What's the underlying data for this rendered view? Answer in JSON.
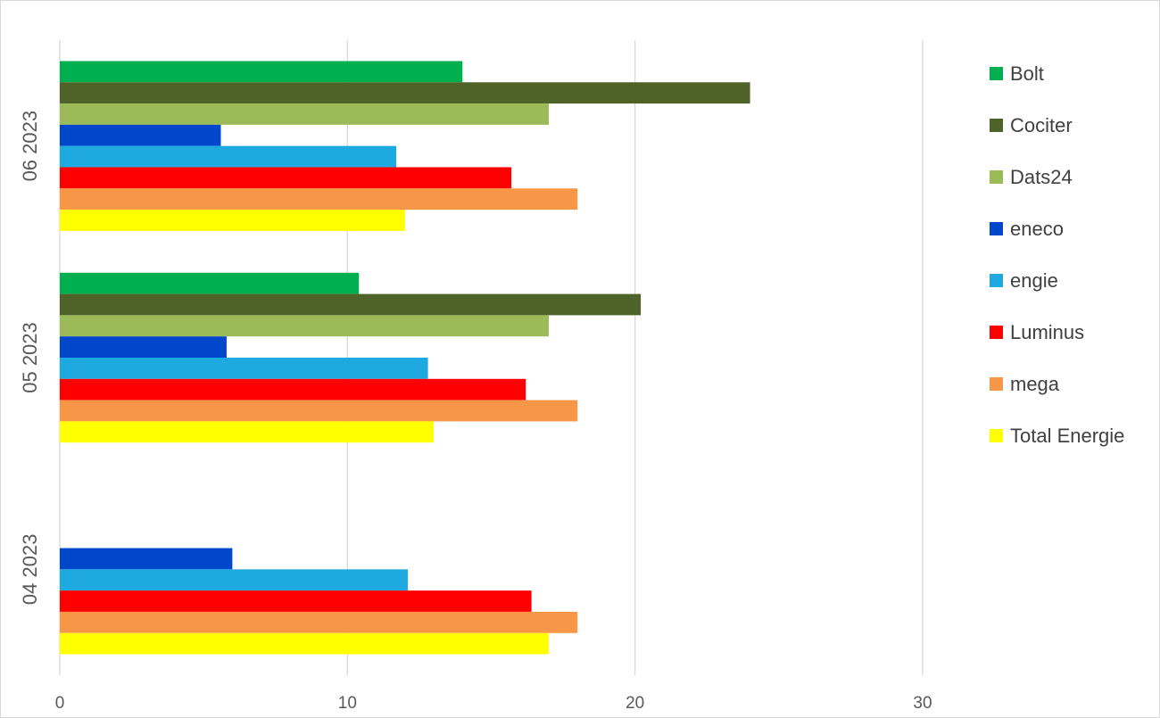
{
  "chart_data": {
    "type": "bar",
    "orientation": "horizontal",
    "categories": [
      "06 2023",
      "05 2023",
      "04 2023"
    ],
    "series": [
      {
        "name": "Bolt",
        "color": "#00b050",
        "values": [
          14.0,
          10.4,
          null
        ]
      },
      {
        "name": "Cociter",
        "color": "#4f6228",
        "values": [
          24.0,
          20.2,
          null
        ]
      },
      {
        "name": "Dats24",
        "color": "#9bbb59",
        "values": [
          17.0,
          17.0,
          null
        ]
      },
      {
        "name": "eneco",
        "color": "#0047cc",
        "values": [
          5.6,
          5.8,
          6.0
        ]
      },
      {
        "name": "engie",
        "color": "#1fa9e1",
        "values": [
          11.7,
          12.8,
          12.1
        ]
      },
      {
        "name": "Luminus",
        "color": "#ff0000",
        "values": [
          15.7,
          16.2,
          16.4
        ]
      },
      {
        "name": "mega",
        "color": "#f79646",
        "values": [
          18.0,
          18.0,
          18.0
        ]
      },
      {
        "name": "Total Energie",
        "color": "#ffff00",
        "values": [
          12.0,
          13.0,
          17.0
        ]
      }
    ],
    "xlim": [
      0,
      30
    ],
    "xticks": [
      "0",
      "10",
      "20",
      "30"
    ],
    "grid": true,
    "legend_position": "right",
    "title": "",
    "xlabel": "",
    "ylabel": ""
  }
}
